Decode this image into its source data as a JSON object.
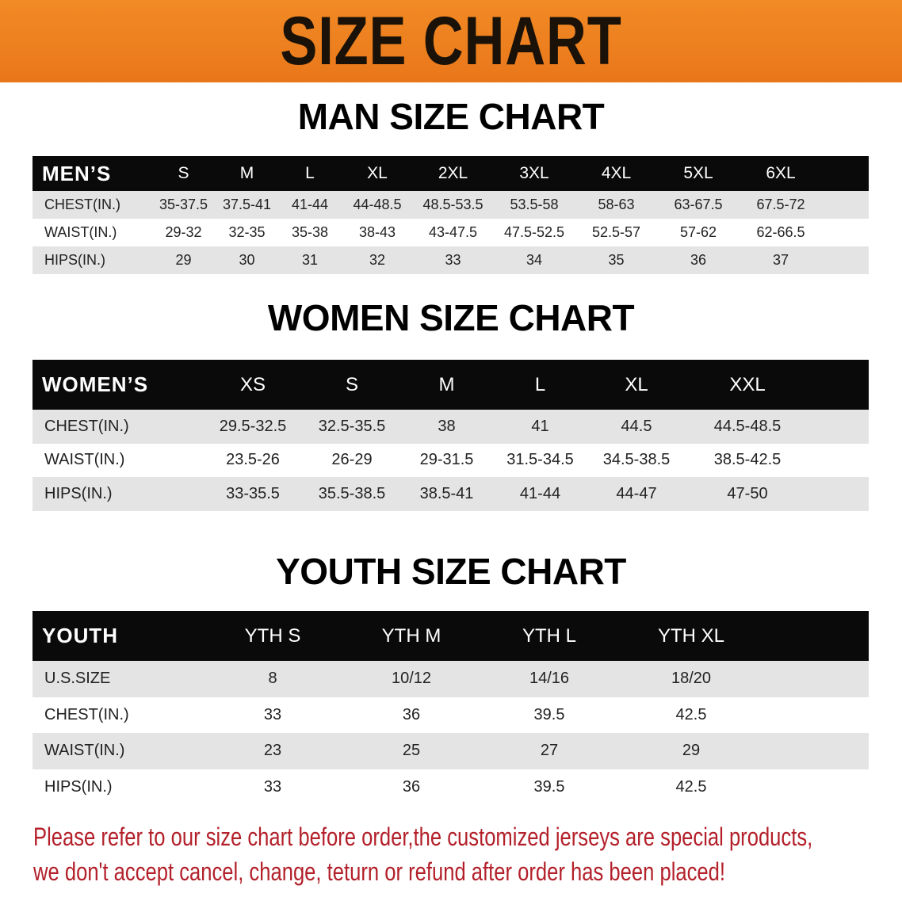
{
  "banner": {
    "title": "SIZE CHART"
  },
  "colors": {
    "banner": "#ee801f",
    "header_row": "#0a0a0a",
    "shaded_row": "#e4e4e4",
    "note": "#b3202a"
  },
  "men": {
    "title": "MAN SIZE CHART",
    "header": [
      "MEN’S",
      "S",
      "M",
      "L",
      "XL",
      "2XL",
      "3XL",
      "4XL",
      "5XL",
      "6XL"
    ],
    "rows": [
      [
        "CHEST(IN.)",
        "35-37.5",
        "37.5-41",
        "41-44",
        "44-48.5",
        "48.5-53.5",
        "53.5-58",
        "58-63",
        "63-67.5",
        "67.5-72"
      ],
      [
        "WAIST(IN.)",
        "29-32",
        "32-35",
        "35-38",
        "38-43",
        "43-47.5",
        "47.5-52.5",
        "52.5-57",
        "57-62",
        "62-66.5"
      ],
      [
        "HIPS(IN.)",
        "29",
        "30",
        "31",
        "32",
        "33",
        "34",
        "35",
        "36",
        "37"
      ]
    ]
  },
  "women": {
    "title": "WOMEN SIZE CHART",
    "header": [
      "WOMEN’S",
      "XS",
      "S",
      "M",
      "L",
      "XL",
      "XXL"
    ],
    "rows": [
      [
        "CHEST(IN.)",
        "29.5-32.5",
        "32.5-35.5",
        "38",
        "41",
        "44.5",
        "44.5-48.5"
      ],
      [
        "WAIST(IN.)",
        "23.5-26",
        "26-29",
        "29-31.5",
        "31.5-34.5",
        "34.5-38.5",
        "38.5-42.5"
      ],
      [
        "HIPS(IN.)",
        "33-35.5",
        "35.5-38.5",
        "38.5-41",
        "41-44",
        "44-47",
        "47-50"
      ]
    ]
  },
  "youth": {
    "title": "YOUTH SIZE CHART",
    "header": [
      "YOUTH",
      "YTH S",
      "YTH M",
      "YTH L",
      "YTH XL"
    ],
    "rows": [
      [
        "U.S.SIZE",
        "8",
        "10/12",
        "14/16",
        "18/20"
      ],
      [
        "CHEST(IN.)",
        "33",
        "36",
        "39.5",
        "42.5"
      ],
      [
        "WAIST(IN.)",
        "23",
        "25",
        "27",
        "29"
      ],
      [
        "HIPS(IN.)",
        "33",
        "36",
        "39.5",
        "42.5"
      ]
    ]
  },
  "note": {
    "line1": "Please refer to our size chart before order,the customized jerseys are special products,",
    "line2": "we don't accept cancel, change, teturn or refund after order has been placed!"
  }
}
